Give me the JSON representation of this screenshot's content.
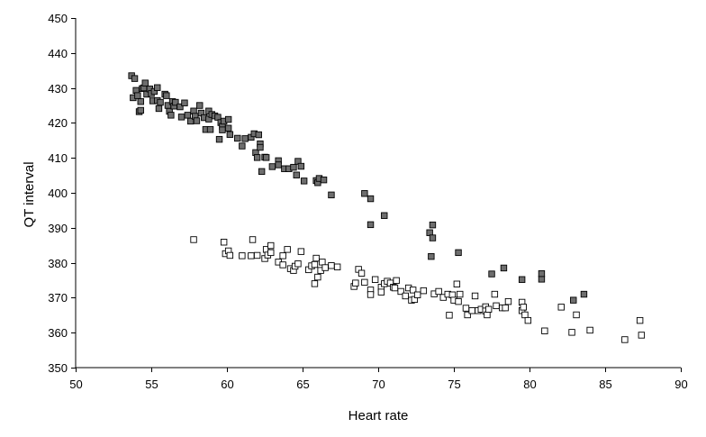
{
  "chart_data": {
    "type": "scatter",
    "title": "",
    "xlabel": "Heart rate",
    "ylabel": "QT interval",
    "xlim": [
      50,
      90
    ],
    "ylim": [
      350,
      450
    ],
    "xticks": [
      50,
      55,
      60,
      65,
      70,
      75,
      80,
      85,
      90
    ],
    "yticks": [
      350,
      360,
      370,
      380,
      390,
      400,
      410,
      420,
      430,
      440,
      450
    ],
    "grid": false,
    "legend": "none",
    "colors": {
      "filled": "#6e6e6e",
      "open": "#ffffff",
      "stroke": "#000000"
    },
    "series": [
      {
        "marker": "filled-square",
        "points": [
          [
            53.7,
            433.5
          ],
          [
            53.9,
            432.7
          ],
          [
            53.8,
            427.2
          ],
          [
            54.0,
            429.3
          ],
          [
            54.1,
            427.8
          ],
          [
            54.2,
            423.2
          ],
          [
            54.3,
            426.1
          ],
          [
            54.3,
            423.6
          ],
          [
            54.4,
            429.8
          ],
          [
            54.5,
            430.0
          ],
          [
            54.6,
            431.4
          ],
          [
            54.7,
            428.2
          ],
          [
            54.9,
            429.7
          ],
          [
            55.0,
            428.4
          ],
          [
            55.1,
            426.3
          ],
          [
            55.2,
            429.0
          ],
          [
            55.4,
            430.1
          ],
          [
            55.4,
            426.4
          ],
          [
            55.5,
            424.1
          ],
          [
            55.6,
            425.9
          ],
          [
            55.9,
            428.2
          ],
          [
            56.0,
            427.8
          ],
          [
            56.1,
            425.0
          ],
          [
            56.2,
            423.3
          ],
          [
            56.3,
            422.2
          ],
          [
            56.4,
            426.1
          ],
          [
            56.5,
            424.8
          ],
          [
            56.6,
            425.9
          ],
          [
            56.9,
            424.6
          ],
          [
            57.0,
            421.7
          ],
          [
            57.2,
            425.7
          ],
          [
            57.4,
            422.2
          ],
          [
            57.6,
            420.5
          ],
          [
            57.8,
            423.4
          ],
          [
            57.9,
            421.9
          ],
          [
            58.0,
            420.6
          ],
          [
            58.2,
            425.0
          ],
          [
            58.3,
            422.8
          ],
          [
            58.5,
            421.5
          ],
          [
            58.6,
            418.1
          ],
          [
            58.8,
            423.4
          ],
          [
            58.8,
            421.1
          ],
          [
            58.9,
            418.1
          ],
          [
            59.0,
            422.4
          ],
          [
            59.2,
            422.0
          ],
          [
            59.4,
            421.6
          ],
          [
            59.5,
            415.3
          ],
          [
            59.6,
            420.1
          ],
          [
            59.7,
            419.0
          ],
          [
            59.7,
            418.0
          ],
          [
            59.8,
            420.5
          ],
          [
            60.1,
            421.0
          ],
          [
            60.1,
            418.5
          ],
          [
            60.2,
            416.7
          ],
          [
            60.7,
            415.6
          ],
          [
            61.0,
            413.4
          ],
          [
            61.2,
            415.5
          ],
          [
            61.6,
            415.9
          ],
          [
            61.8,
            416.9
          ],
          [
            61.9,
            411.5
          ],
          [
            62.0,
            410.1
          ],
          [
            62.1,
            416.6
          ],
          [
            62.2,
            414.0
          ],
          [
            62.2,
            413.0
          ],
          [
            62.3,
            406.1
          ],
          [
            62.5,
            410.2
          ],
          [
            62.6,
            410.1
          ],
          [
            63.0,
            407.5
          ],
          [
            63.4,
            409.2
          ],
          [
            63.4,
            408.0
          ],
          [
            63.8,
            406.9
          ],
          [
            64.1,
            406.9
          ],
          [
            64.4,
            407.3
          ],
          [
            64.6,
            405.1
          ],
          [
            64.7,
            409.0
          ],
          [
            64.9,
            407.6
          ],
          [
            65.1,
            403.4
          ],
          [
            65.9,
            403.5
          ],
          [
            66.0,
            402.9
          ],
          [
            66.1,
            404.1
          ],
          [
            66.4,
            403.7
          ],
          [
            66.9,
            399.4
          ],
          [
            69.1,
            399.8
          ],
          [
            69.5,
            390.9
          ],
          [
            69.5,
            398.3
          ],
          [
            70.4,
            393.5
          ],
          [
            73.4,
            388.6
          ],
          [
            73.5,
            381.8
          ],
          [
            73.6,
            387.1
          ],
          [
            73.6,
            390.8
          ],
          [
            75.3,
            382.9
          ],
          [
            77.5,
            376.8
          ],
          [
            78.3,
            378.5
          ],
          [
            79.5,
            375.2
          ],
          [
            80.8,
            375.3
          ],
          [
            80.8,
            376.9
          ],
          [
            82.9,
            369.3
          ],
          [
            83.6,
            371.0
          ]
        ]
      },
      {
        "marker": "open-square",
        "points": [
          [
            57.8,
            386.6
          ],
          [
            59.8,
            385.9
          ],
          [
            59.9,
            382.6
          ],
          [
            60.1,
            383.4
          ],
          [
            60.2,
            382.1
          ],
          [
            61.0,
            382.0
          ],
          [
            61.6,
            382.0
          ],
          [
            61.7,
            386.6
          ],
          [
            62.0,
            382.1
          ],
          [
            62.5,
            381.2
          ],
          [
            62.6,
            383.8
          ],
          [
            62.7,
            382.2
          ],
          [
            62.9,
            384.9
          ],
          [
            62.9,
            382.9
          ],
          [
            63.4,
            380.2
          ],
          [
            63.7,
            379.4
          ],
          [
            63.7,
            382.0
          ],
          [
            64.0,
            383.8
          ],
          [
            64.2,
            378.3
          ],
          [
            64.4,
            377.8
          ],
          [
            64.5,
            379.0
          ],
          [
            64.7,
            379.7
          ],
          [
            64.9,
            383.2
          ],
          [
            65.4,
            378.0
          ],
          [
            65.6,
            379.1
          ],
          [
            65.8,
            379.5
          ],
          [
            65.8,
            374.0
          ],
          [
            65.9,
            381.3
          ],
          [
            66.0,
            375.9
          ],
          [
            66.2,
            377.8
          ],
          [
            66.3,
            380.2
          ],
          [
            66.5,
            378.6
          ],
          [
            66.9,
            379.2
          ],
          [
            67.3,
            378.8
          ],
          [
            68.4,
            373.2
          ],
          [
            68.5,
            374.2
          ],
          [
            68.7,
            378.1
          ],
          [
            68.9,
            377.0
          ],
          [
            69.1,
            374.4
          ],
          [
            69.5,
            372.2
          ],
          [
            69.5,
            370.9
          ],
          [
            69.8,
            375.2
          ],
          [
            70.2,
            373.0
          ],
          [
            70.2,
            371.6
          ],
          [
            70.4,
            374.0
          ],
          [
            70.6,
            374.7
          ],
          [
            70.8,
            374.2
          ],
          [
            71.0,
            373.0
          ],
          [
            71.1,
            372.8
          ],
          [
            71.2,
            374.9
          ],
          [
            71.5,
            371.8
          ],
          [
            71.8,
            370.5
          ],
          [
            72.0,
            372.8
          ],
          [
            72.2,
            369.3
          ],
          [
            72.3,
            372.2
          ],
          [
            72.4,
            369.5
          ],
          [
            72.6,
            370.8
          ],
          [
            73.0,
            372.0
          ],
          [
            73.7,
            371.1
          ],
          [
            74.0,
            371.8
          ],
          [
            74.3,
            370.1
          ],
          [
            74.6,
            371.0
          ],
          [
            74.7,
            365.0
          ],
          [
            74.9,
            370.8
          ],
          [
            75.0,
            369.3
          ],
          [
            75.2,
            373.9
          ],
          [
            75.3,
            368.9
          ],
          [
            75.4,
            371.0
          ],
          [
            75.8,
            367.0
          ],
          [
            75.9,
            365.1
          ],
          [
            76.2,
            366.3
          ],
          [
            76.4,
            370.5
          ],
          [
            76.6,
            366.3
          ],
          [
            76.8,
            366.7
          ],
          [
            77.1,
            367.4
          ],
          [
            77.1,
            366.2
          ],
          [
            77.2,
            365.1
          ],
          [
            77.3,
            366.7
          ],
          [
            77.7,
            371.0
          ],
          [
            77.8,
            367.7
          ],
          [
            78.2,
            367.1
          ],
          [
            78.4,
            367.1
          ],
          [
            78.6,
            368.9
          ],
          [
            79.5,
            366.3
          ],
          [
            79.5,
            368.7
          ],
          [
            79.6,
            367.3
          ],
          [
            79.7,
            365.1
          ],
          [
            79.9,
            363.5
          ],
          [
            81.0,
            360.5
          ],
          [
            82.1,
            367.3
          ],
          [
            82.8,
            360.1
          ],
          [
            83.1,
            365.1
          ],
          [
            84.0,
            360.7
          ],
          [
            86.3,
            358.0
          ],
          [
            87.3,
            363.5
          ],
          [
            87.4,
            359.3
          ]
        ]
      }
    ]
  }
}
